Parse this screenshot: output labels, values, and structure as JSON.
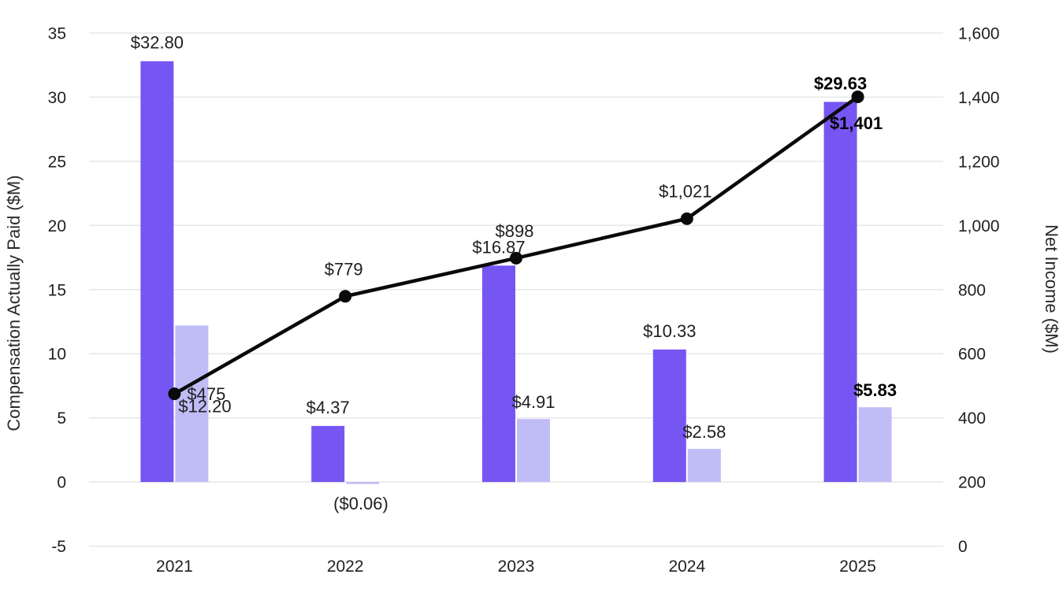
{
  "chart_data": {
    "type": "combo_bar_line",
    "title": "",
    "categories": [
      "2021",
      "2022",
      "2023",
      "2024",
      "2025"
    ],
    "series": [
      {
        "name": "compensation-actually-paid-bar-primary",
        "type": "bar",
        "axis": "left",
        "color": "#7656F2",
        "values": [
          32.8,
          4.37,
          16.87,
          10.33,
          29.63
        ],
        "labels": [
          "$32.80",
          "$4.37",
          "$16.87",
          "$10.33",
          "$29.63"
        ]
      },
      {
        "name": "compensation-actually-paid-bar-secondary",
        "type": "bar",
        "axis": "left",
        "color": "#BFBCF6",
        "values": [
          12.2,
          -0.06,
          4.91,
          2.58,
          5.83
        ],
        "labels": [
          "$12.20",
          "($0.06)",
          "$4.91",
          "$2.58",
          "$5.83"
        ]
      },
      {
        "name": "net-income-line",
        "type": "line",
        "axis": "right",
        "color": "#0a0a0a",
        "values": [
          475,
          779,
          898,
          1021,
          1401
        ],
        "labels": [
          "$475",
          "$779",
          "$898",
          "$1,021",
          "$1,401"
        ]
      }
    ],
    "left_axis": {
      "title": "Compensation Actually Paid ($M)",
      "min": -5,
      "max": 35,
      "ticks": [
        35,
        30,
        25,
        20,
        15,
        10,
        5,
        0,
        -5
      ],
      "tick_labels": [
        "35",
        "30",
        "25",
        "20",
        "15",
        "10",
        "5",
        "0",
        "-5"
      ]
    },
    "right_axis": {
      "title": "Net Income ($M)",
      "min": 0,
      "max": 1600,
      "ticks": [
        1600,
        1400,
        1200,
        1000,
        800,
        600,
        400,
        200,
        0
      ],
      "tick_labels": [
        "1,600",
        "1,400",
        "1,200",
        "1,000",
        "800",
        "600",
        "400",
        "200",
        "0"
      ]
    },
    "grid": true,
    "legend": "none",
    "highlighted_category": "2025",
    "colors": {
      "bar_primary": "#7656F2",
      "bar_secondary": "#BFBCF6",
      "line": "#0a0a0a",
      "gridline": "#e7e7e7",
      "text": "#1f1f1f"
    }
  }
}
